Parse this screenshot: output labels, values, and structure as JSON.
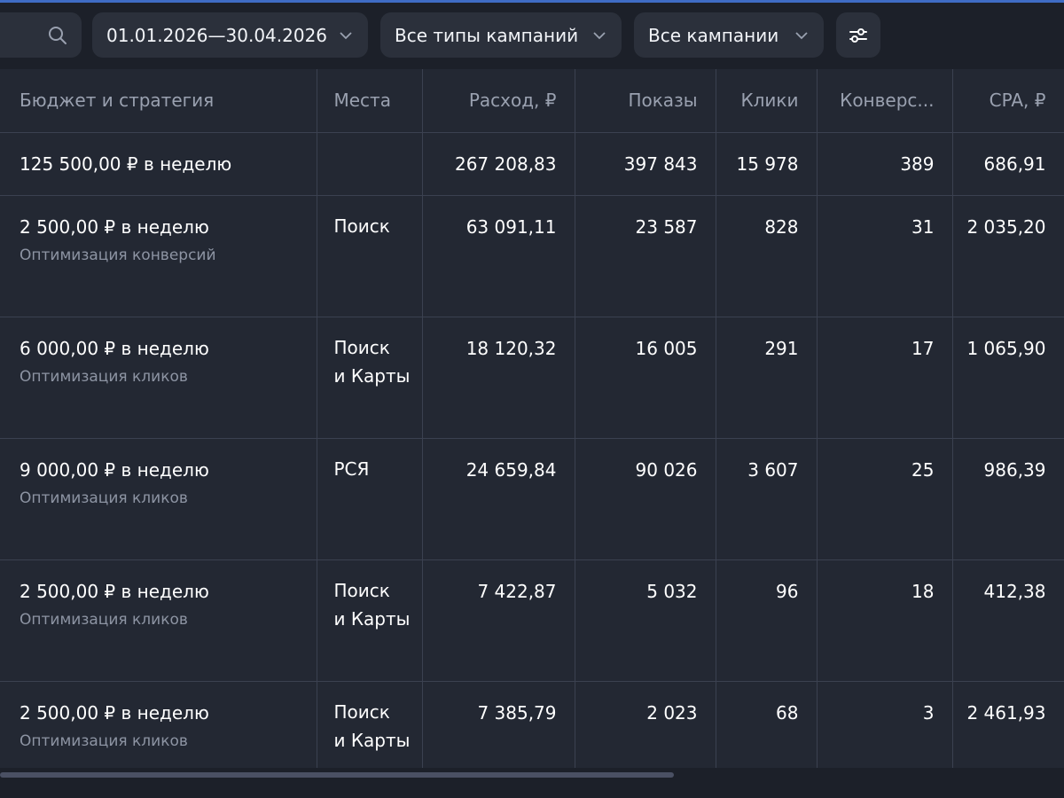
{
  "toolbar": {
    "date_range": "01.01.2026—30.04.2026",
    "campaign_types": "Все типы кампаний",
    "campaigns": "Все кампании"
  },
  "icons": {
    "search": "search-icon",
    "chevron": "chevron-down-icon",
    "filter": "sliders-icon"
  },
  "colors": {
    "background": "#1c2029",
    "table": "#232833",
    "control": "#2b303b",
    "accent": "#3f6cc4"
  },
  "table": {
    "columns": [
      "Бюджет и стратегия",
      "Места",
      "Расход, ₽",
      "Показы",
      "Клики",
      "Конверс...",
      "CPA, ₽"
    ],
    "total": {
      "budget": "125 500,00 ₽ в неделю",
      "places": "",
      "spend": "267 208,83",
      "impressions": "397 843",
      "clicks": "15 978",
      "conversions": "389",
      "cpa": "686,91"
    },
    "rows": [
      {
        "budget": "2 500,00 ₽ в неделю",
        "strategy": "Оптимизация конверсий",
        "places1": "Поиск",
        "places2": "",
        "spend": "63 091,11",
        "impressions": "23 587",
        "clicks": "828",
        "conversions": "31",
        "cpa": "2 035,20"
      },
      {
        "budget": "6 000,00 ₽ в неделю",
        "strategy": "Оптимизация кликов",
        "places1": "Поиск",
        "places2": "и Карты",
        "spend": "18 120,32",
        "impressions": "16 005",
        "clicks": "291",
        "conversions": "17",
        "cpa": "1 065,90"
      },
      {
        "budget": "9 000,00 ₽ в неделю",
        "strategy": "Оптимизация кликов",
        "places1": "РСЯ",
        "places2": "",
        "spend": "24 659,84",
        "impressions": "90 026",
        "clicks": "3 607",
        "conversions": "25",
        "cpa": "986,39"
      },
      {
        "budget": "2 500,00 ₽ в неделю",
        "strategy": "Оптимизация кликов",
        "places1": "Поиск",
        "places2": "и Карты",
        "spend": "7 422,87",
        "impressions": "5 032",
        "clicks": "96",
        "conversions": "18",
        "cpa": "412,38"
      },
      {
        "budget": "2 500,00 ₽ в неделю",
        "strategy": "Оптимизация кликов",
        "places1": "Поиск",
        "places2": "и Карты",
        "spend": "7 385,79",
        "impressions": "2 023",
        "clicks": "68",
        "conversions": "3",
        "cpa": "2 461,93"
      }
    ]
  }
}
